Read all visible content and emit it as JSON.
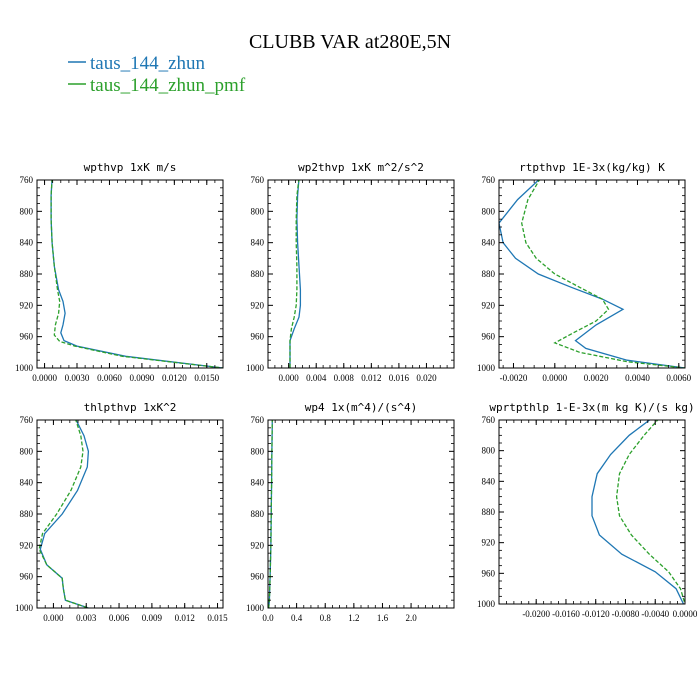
{
  "figure": {
    "title": "CLUBB VAR at280E,5N",
    "colors": {
      "series_0": "#1f77b4",
      "series_1": "#2ca02c"
    }
  },
  "chart_data": [
    {
      "type": "line",
      "title": "wpthvp   1xK m/s",
      "xlim": [
        -0.0007,
        0.0165
      ],
      "ylim": [
        760,
        1000
      ],
      "xticks": [
        "0.0000",
        "0.0030",
        "0.0060",
        "0.0090",
        "0.0120",
        "0.0150"
      ],
      "xtick_values": [
        0,
        0.003,
        0.006,
        0.009,
        0.012,
        0.015
      ],
      "yticks": [
        "760",
        "800",
        "840",
        "880",
        "920",
        "960",
        "1000"
      ],
      "ytick_values": [
        760,
        800,
        840,
        880,
        920,
        960,
        1000
      ],
      "series": [
        {
          "name": "taus_144_zhun",
          "style": "solid",
          "x": [
            0.0007,
            0.0006,
            0.0006,
            0.0007,
            0.0009,
            0.0013,
            0.0017,
            0.0019,
            0.0017,
            0.0015,
            0.0018,
            0.003,
            0.0075,
            0.0165
          ],
          "y": [
            758,
            780,
            810,
            840,
            870,
            900,
            915,
            930,
            945,
            955,
            965,
            972,
            985,
            1000
          ]
        },
        {
          "name": "taus_144_zhun_pmf",
          "style": "dashed",
          "x": [
            0.0007,
            0.0006,
            0.0006,
            0.0007,
            0.0009,
            0.0012,
            0.0014,
            0.0013,
            0.001,
            0.0009,
            0.0014,
            0.0028,
            0.0072,
            0.0165
          ],
          "y": [
            758,
            780,
            810,
            840,
            870,
            900,
            915,
            930,
            945,
            958,
            966,
            972,
            985,
            1000
          ]
        }
      ]
    },
    {
      "type": "line",
      "title": "wp2thvp   1xK m^2/s^2",
      "xlim": [
        -0.003,
        0.024
      ],
      "ylim": [
        760,
        1000
      ],
      "xticks": [
        "0.000",
        "0.004",
        "0.008",
        "0.012",
        "0.016",
        "0.020"
      ],
      "xtick_values": [
        0,
        0.004,
        0.008,
        0.012,
        0.016,
        0.02
      ],
      "yticks": [
        "760",
        "800",
        "840",
        "880",
        "920",
        "960",
        "1000"
      ],
      "ytick_values": [
        760,
        800,
        840,
        880,
        920,
        960,
        1000
      ],
      "series": [
        {
          "name": "taus_144_zhun",
          "style": "solid",
          "x": [
            0.0015,
            0.0013,
            0.0012,
            0.0013,
            0.0015,
            0.0017,
            0.0017,
            0.0015,
            0.0008,
            0.0002,
            0.0002,
            0.0002
          ],
          "y": [
            758,
            780,
            810,
            840,
            870,
            900,
            920,
            935,
            950,
            965,
            985,
            1000
          ]
        },
        {
          "name": "taus_144_zhun_pmf",
          "style": "dashed",
          "x": [
            0.0015,
            0.0012,
            0.0011,
            0.0011,
            0.0012,
            0.0012,
            0.0011,
            0.0008,
            0.0004,
            0.0002,
            0.0002,
            0.0002
          ],
          "y": [
            758,
            780,
            810,
            840,
            870,
            900,
            920,
            935,
            950,
            965,
            985,
            1000
          ]
        }
      ]
    },
    {
      "type": "line",
      "title": "rtpthvp   1E-3x(kg/kg) K",
      "xlim": [
        -0.0027,
        0.0063
      ],
      "ylim": [
        760,
        1000
      ],
      "xticks": [
        "-0.0020",
        "0.0000",
        "0.0020",
        "0.0040",
        "0.0060"
      ],
      "xtick_values": [
        -0.002,
        0,
        0.002,
        0.004,
        0.006
      ],
      "yticks": [
        "760",
        "800",
        "840",
        "880",
        "920",
        "960",
        "1000"
      ],
      "ytick_values": [
        760,
        800,
        840,
        880,
        920,
        960,
        1000
      ],
      "series": [
        {
          "name": "taus_144_zhun",
          "style": "solid",
          "x": [
            -0.0007,
            -0.0018,
            -0.0027,
            -0.0025,
            -0.0019,
            -0.0008,
            0.0008,
            0.0023,
            0.0033,
            0.002,
            0.001,
            0.0015,
            0.0035,
            0.0063
          ],
          "y": [
            758,
            785,
            815,
            840,
            860,
            880,
            897,
            912,
            925,
            945,
            965,
            975,
            990,
            1000
          ]
        },
        {
          "name": "taus_144_zhun_pmf",
          "style": "dashed",
          "x": [
            -0.0007,
            -0.0013,
            -0.0016,
            -0.0014,
            -0.0009,
            0.0,
            0.0012,
            0.0023,
            0.0026,
            0.002,
            0.0009,
            0.0,
            0.0012,
            0.0035,
            0.0063
          ],
          "y": [
            758,
            785,
            815,
            840,
            860,
            880,
            897,
            912,
            925,
            940,
            955,
            968,
            980,
            992,
            1000
          ]
        }
      ]
    },
    {
      "type": "line",
      "title": "thlpthvp   1xK^2",
      "xlim": [
        -0.0015,
        0.0155
      ],
      "ylim": [
        760,
        1000
      ],
      "xticks": [
        "0.000",
        "0.003",
        "0.006",
        "0.009",
        "0.012",
        "0.015"
      ],
      "xtick_values": [
        0,
        0.003,
        0.006,
        0.009,
        0.012,
        0.015
      ],
      "yticks": [
        "760",
        "800",
        "840",
        "880",
        "920",
        "960",
        "1000"
      ],
      "ytick_values": [
        760,
        800,
        840,
        880,
        920,
        960,
        1000
      ],
      "series": [
        {
          "name": "taus_144_zhun",
          "style": "solid",
          "x": [
            0.002,
            0.0028,
            0.0032,
            0.0031,
            0.0022,
            0.0008,
            -0.0008,
            -0.0012,
            -0.0006,
            0.0008,
            0.0009,
            0.0011,
            0.0032
          ],
          "y": [
            758,
            780,
            800,
            820,
            850,
            880,
            905,
            925,
            945,
            962,
            975,
            990,
            1000
          ]
        },
        {
          "name": "taus_144_zhun_pmf",
          "style": "dashed",
          "x": [
            0.002,
            0.0025,
            0.0027,
            0.0025,
            0.0016,
            0.0003,
            -0.001,
            -0.0013,
            -0.0006,
            0.0008,
            0.0009,
            0.0011,
            0.0032
          ],
          "y": [
            758,
            780,
            800,
            820,
            850,
            880,
            905,
            925,
            945,
            962,
            975,
            990,
            1000
          ]
        }
      ]
    },
    {
      "type": "line",
      "title": "wp4   1x(m^4)/(s^4)",
      "xlim": [
        0,
        2.6
      ],
      "ylim": [
        760,
        1000
      ],
      "xticks": [
        "0.0",
        "0.4",
        "0.8",
        "1.2",
        "1.6",
        "2.0"
      ],
      "xtick_values": [
        0,
        0.4,
        0.8,
        1.2,
        1.6,
        2.0
      ],
      "yticks": [
        "760",
        "800",
        "840",
        "880",
        "920",
        "960",
        "1000"
      ],
      "ytick_values": [
        760,
        800,
        840,
        880,
        920,
        960,
        1000
      ],
      "series": [
        {
          "name": "taus_144_zhun",
          "style": "solid",
          "x": [
            0.06,
            0.055,
            0.05,
            0.045,
            0.04,
            0.03,
            0.02,
            0.01
          ],
          "y": [
            758,
            800,
            840,
            880,
            920,
            960,
            990,
            1000
          ]
        },
        {
          "name": "taus_144_zhun_pmf",
          "style": "dashed",
          "x": [
            0.06,
            0.055,
            0.05,
            0.045,
            0.04,
            0.03,
            0.02,
            0.01
          ],
          "y": [
            758,
            800,
            840,
            880,
            920,
            960,
            990,
            1000
          ]
        }
      ]
    },
    {
      "type": "line",
      "title": "wprtpthlp   1-E-3x(m kg K)/(s kg)",
      "xlim": [
        -0.025,
        0.0
      ],
      "ylim": [
        760,
        1000
      ],
      "xticks": [
        "-0.0200",
        "-0.0160",
        "-0.0120",
        "-0.0080",
        "-0.0040",
        "0.0000"
      ],
      "xtick_values": [
        -0.02,
        -0.016,
        -0.012,
        -0.008,
        -0.004,
        0.0
      ],
      "yticks": [
        "760",
        "800",
        "840",
        "880",
        "920",
        "960",
        "1000"
      ],
      "ytick_values": [
        760,
        800,
        840,
        880,
        920,
        960,
        1000
      ],
      "series": [
        {
          "name": "taus_144_zhun",
          "style": "solid",
          "x": [
            -0.0045,
            -0.0075,
            -0.01,
            -0.0118,
            -0.0125,
            -0.0125,
            -0.0115,
            -0.0085,
            -0.004,
            -0.0012,
            -0.0002
          ],
          "y": [
            758,
            780,
            805,
            830,
            860,
            885,
            910,
            935,
            958,
            980,
            1000
          ]
        },
        {
          "name": "taus_144_zhun_pmf",
          "style": "dashed",
          "x": [
            -0.0035,
            -0.0055,
            -0.0075,
            -0.0088,
            -0.0092,
            -0.0088,
            -0.0072,
            -0.0048,
            -0.0022,
            -0.0006,
            0.0
          ],
          "y": [
            758,
            780,
            805,
            830,
            860,
            885,
            910,
            935,
            958,
            980,
            1000
          ]
        }
      ]
    }
  ]
}
